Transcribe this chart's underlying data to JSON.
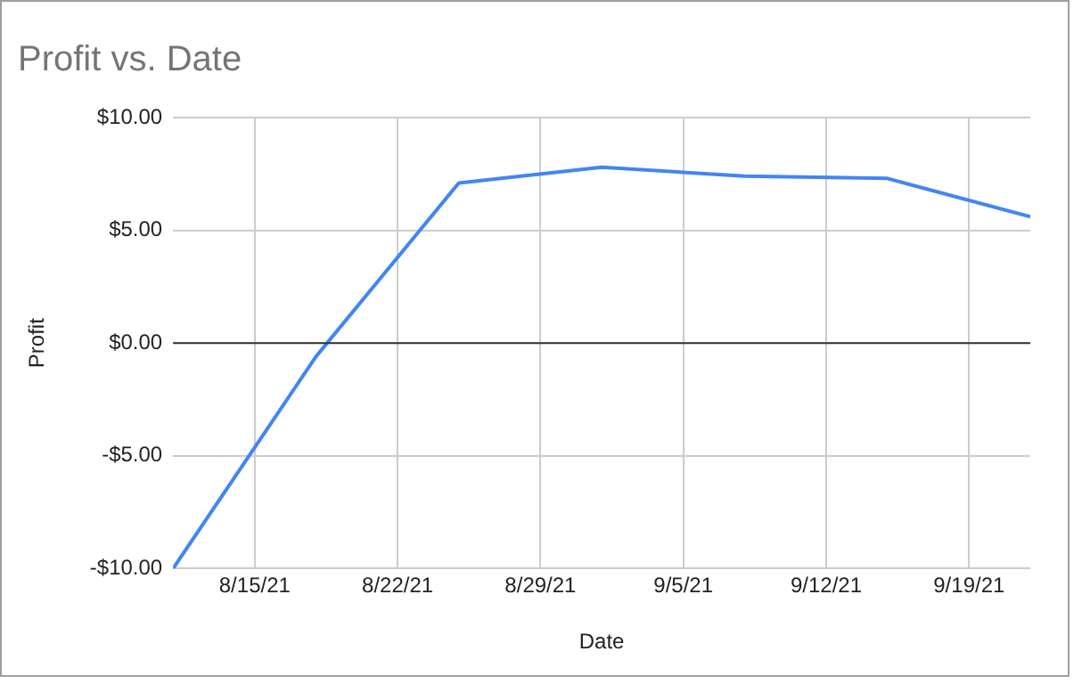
{
  "chart_data": {
    "type": "line",
    "title": "Profit vs. Date",
    "xlabel": "Date",
    "ylabel": "Profit",
    "x": [
      "--08-11",
      "--08-18",
      "--08-25",
      "--09-01",
      "--09-08",
      "--09-15",
      "--09-22"
    ],
    "series": [
      {
        "color": "#4285f4",
        "values": [
          -10,
          -0.6,
          7.1,
          7.8,
          7.4,
          7.3,
          5.6
        ]
      }
    ],
    "xlim": [
      "--08-11",
      "--09-22"
    ],
    "xticks": [
      {
        "value": "--08-15",
        "label": "8/15/21"
      },
      {
        "value": "--08-22",
        "label": "8/22/21"
      },
      {
        "value": "--08-29",
        "label": "8/29/21"
      },
      {
        "value": "--09-05",
        "label": "9/5/21"
      },
      {
        "value": "--09-12",
        "label": "9/12/21"
      },
      {
        "value": "--09-19",
        "label": "9/19/21"
      }
    ],
    "ylim": [
      -10,
      10
    ],
    "yticks": [
      {
        "value": -10,
        "label": "-$10.00"
      },
      {
        "value": -5,
        "label": "-$5.00"
      },
      {
        "value": 0,
        "label": "$0.00"
      },
      {
        "value": 5,
        "label": "$5.00"
      },
      {
        "value": 10,
        "label": "$10.00"
      }
    ],
    "ref_lines": [
      {
        "axis": "y",
        "value": 0,
        "color": "#333333"
      }
    ],
    "grid": true,
    "marker": "none",
    "line_style": "solid",
    "legend": false
  }
}
